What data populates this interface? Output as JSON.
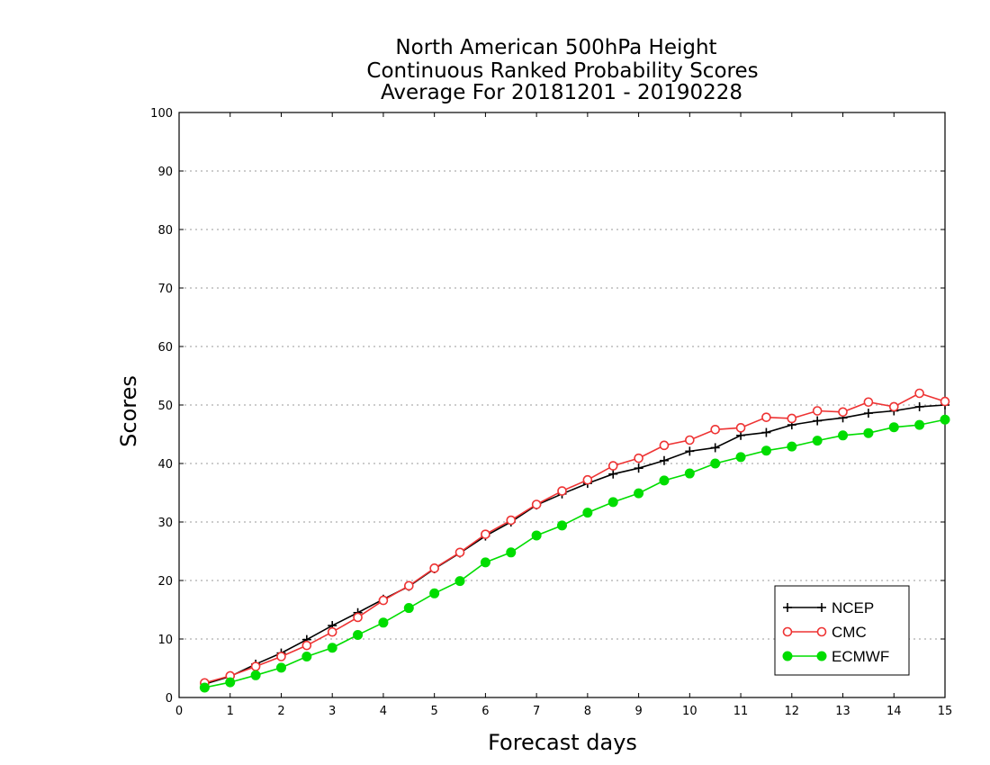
{
  "chart_data": {
    "type": "line",
    "title_lines": [
      "North American 500hPa Height",
      "Continuous Ranked Probability Scores",
      "Average For 20181201 - 20190228"
    ],
    "xlabel": "Forecast days",
    "ylabel": "Scores",
    "xlim": [
      0,
      15
    ],
    "ylim": [
      0,
      100
    ],
    "x_ticks": [
      "0",
      "1",
      "2",
      "3",
      "4",
      "5",
      "6",
      "7",
      "8",
      "9",
      "10",
      "11",
      "12",
      "13",
      "14",
      "15"
    ],
    "y_ticks": [
      "0",
      "10",
      "20",
      "30",
      "40",
      "50",
      "60",
      "70",
      "80",
      "90",
      "100"
    ],
    "grid": "horizontal dotted",
    "legend_position": "bottom-right",
    "x": [
      0.5,
      1,
      1.5,
      2,
      2.5,
      3,
      3.5,
      4,
      4.5,
      5,
      5.5,
      6,
      6.5,
      7,
      7.5,
      8,
      8.5,
      9,
      9.5,
      10,
      10.5,
      11,
      11.5,
      12,
      12.5,
      13,
      13.5,
      14,
      14.5,
      15
    ],
    "series": [
      {
        "name": "NCEP",
        "color": "#000000",
        "marker": "plus",
        "values": [
          2.3,
          3.6,
          5.7,
          7.6,
          9.9,
          12.3,
          14.5,
          16.8,
          19.0,
          22.0,
          24.7,
          27.6,
          30.0,
          32.9,
          34.8,
          36.6,
          38.2,
          39.2,
          40.5,
          42.1,
          42.7,
          44.8,
          45.3,
          46.6,
          47.3,
          47.8,
          48.6,
          49.0,
          49.7,
          50.0
        ]
      },
      {
        "name": "CMC",
        "color": "#ee3333",
        "marker": "open-circle",
        "values": [
          2.5,
          3.7,
          5.3,
          7.0,
          8.9,
          11.2,
          13.7,
          16.6,
          19.1,
          22.1,
          24.8,
          27.9,
          30.3,
          33.0,
          35.3,
          37.2,
          39.6,
          40.9,
          43.1,
          44.0,
          45.8,
          46.1,
          47.9,
          47.7,
          49.0,
          48.8,
          50.5,
          49.7,
          52.0,
          50.6
        ]
      },
      {
        "name": "ECMWF",
        "color": "#00dd00",
        "marker": "filled-circle",
        "values": [
          1.7,
          2.6,
          3.8,
          5.1,
          7.0,
          8.5,
          10.7,
          12.8,
          15.3,
          17.8,
          19.9,
          23.1,
          24.8,
          27.7,
          29.4,
          31.6,
          33.4,
          34.9,
          37.1,
          38.3,
          40.0,
          41.1,
          42.2,
          42.9,
          43.9,
          44.8,
          45.2,
          46.2,
          46.6,
          47.5
        ]
      }
    ]
  }
}
